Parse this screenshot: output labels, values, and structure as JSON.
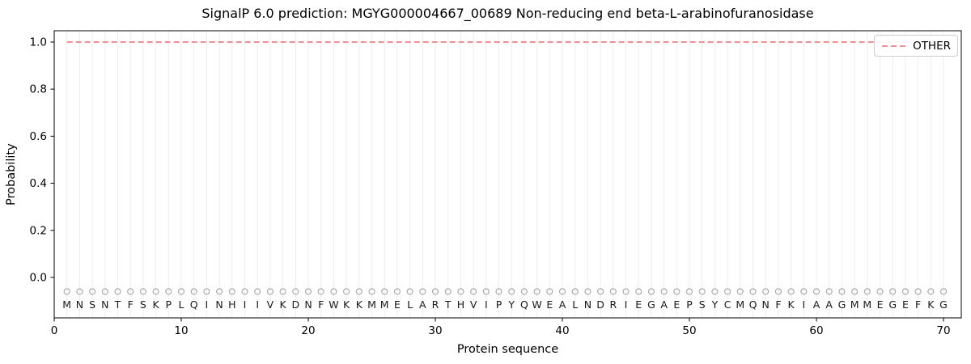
{
  "chart_data": {
    "type": "line",
    "title": "SignalP 6.0 prediction: MGYG000004667_00689 Non-reducing end beta-L-arabinofuranosidase",
    "xlabel": "Protein sequence",
    "ylabel": "Probability",
    "xlim": [
      0,
      71.4
    ],
    "ylim": [
      -0.172,
      1.048
    ],
    "xticks": [
      0,
      10,
      20,
      30,
      40,
      50,
      60,
      70
    ],
    "yticks": [
      0.0,
      0.2,
      0.4,
      0.6,
      0.8,
      1.0
    ],
    "grid": {
      "show": true,
      "orientation": "vertical",
      "per_residue": true,
      "color": "#ededed"
    },
    "series": [
      {
        "name": "OTHER",
        "linestyle": "dashed",
        "color": "#ea8288",
        "x": [
          1,
          70
        ],
        "y": [
          1.0,
          1.0
        ]
      }
    ],
    "sequence": {
      "letters": "MNSNTFSKPLQINHIIVKDNFWKKMMELARTHVIPYQWEALNDRIEGAEPSYCMQNFKIAAGMMEGEFKG",
      "start_position": 1,
      "marker": {
        "shape": "open-circle",
        "y": -0.06,
        "color": "#a6a6a6"
      },
      "letter_color": "#1a1a1a"
    },
    "legend": {
      "position": "upper right",
      "entries": [
        {
          "label": "OTHER",
          "color": "#ea8288",
          "linestyle": "dashed"
        }
      ]
    },
    "axis_color": "#000000",
    "tick_label_color": "#000000"
  }
}
